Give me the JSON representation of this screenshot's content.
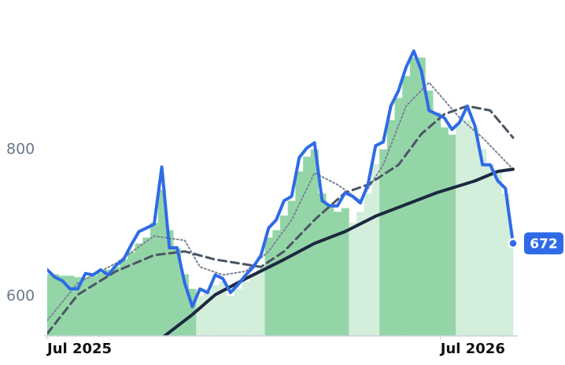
{
  "chart_data": {
    "type": "line",
    "ylim": [
      546,
      982
    ],
    "yticks": [
      600,
      800
    ],
    "xlim": [
      0,
      61
    ],
    "xticks": [
      {
        "value": 0,
        "label": "Jul 2025"
      },
      {
        "value": 51.5,
        "label": "Jul 2026"
      }
    ],
    "area": {
      "values": [
        630,
        630,
        628,
        628,
        626,
        625,
        628,
        632,
        636,
        640,
        650,
        660,
        672,
        680,
        700,
        745,
        690,
        665,
        630,
        610,
        600,
        605,
        615,
        620,
        600,
        610,
        620,
        630,
        640,
        680,
        690,
        710,
        730,
        770,
        790,
        800,
        740,
        725,
        715,
        720,
        700,
        715,
        740,
        780,
        800,
        840,
        870,
        900,
        925,
        925,
        880,
        850,
        830,
        820,
        835,
        840,
        830,
        800,
        780,
        770,
        740,
        690
      ],
      "bands": [
        {
          "from": 0,
          "to": 19,
          "color": "#94d5a8"
        },
        {
          "from": 20,
          "to": 28,
          "color": "#d3eedb"
        },
        {
          "from": 29,
          "to": 39,
          "color": "#94d5a8"
        },
        {
          "from": 40,
          "to": 43,
          "color": "#d3eedb"
        },
        {
          "from": 44,
          "to": 53,
          "color": "#94d5a8"
        },
        {
          "from": 54,
          "to": 61,
          "color": "#d3eedb"
        }
      ]
    },
    "series": [
      {
        "color": "#7a8594",
        "style": "dotted",
        "width": 2,
        "x": [
          0,
          4,
          9,
          14,
          18,
          20,
          23,
          26,
          29,
          32,
          35,
          38,
          41,
          44,
          47,
          50,
          54,
          57,
          61
        ],
        "values": [
          567,
          618,
          645,
          682,
          676,
          640,
          629,
          634,
          661,
          704,
          768,
          752,
          730,
          779,
          859,
          891,
          843,
          816,
          773
        ]
      },
      {
        "color": "#4a5563",
        "style": "dashed",
        "width": 3,
        "x": [
          0,
          4,
          9,
          14,
          18,
          22,
          25,
          28,
          31,
          35,
          39,
          42,
          46,
          49,
          52,
          55,
          58,
          61
        ],
        "values": [
          549,
          602,
          634,
          656,
          661,
          650,
          645,
          640,
          661,
          704,
          741,
          752,
          779,
          821,
          848,
          859,
          853,
          816
        ]
      },
      {
        "color": "#1c2940",
        "style": "solid",
        "width": 4,
        "x": [
          15,
          19,
          22,
          26,
          31,
          35,
          39,
          43,
          47,
          51,
          56,
          59,
          61
        ],
        "values": [
          543,
          575,
          602,
          624,
          650,
          672,
          688,
          709,
          725,
          741,
          757,
          770,
          773
        ]
      },
      {
        "color": "#2f6be6",
        "style": "solid",
        "width": 4,
        "last_label": true,
        "x": [
          0,
          1,
          2,
          3,
          4,
          5,
          6,
          7,
          8,
          9,
          10,
          11,
          12,
          13,
          14,
          15,
          16,
          17,
          18,
          19,
          20,
          21,
          22,
          23,
          24,
          25,
          26,
          27,
          28,
          29,
          30,
          31,
          32,
          33,
          34,
          35,
          36,
          37,
          38,
          39,
          40,
          41,
          42,
          43,
          44,
          45,
          46,
          47,
          48,
          49,
          50,
          51,
          52,
          53,
          54,
          55,
          56,
          57,
          58,
          59,
          60,
          61
        ],
        "values": [
          636,
          626,
          621,
          610,
          610,
          631,
          629,
          636,
          629,
          642,
          650,
          670,
          688,
          693,
          698,
          776,
          666,
          666,
          618,
          586,
          610,
          605,
          629,
          624,
          605,
          616,
          629,
          640,
          656,
          693,
          704,
          730,
          736,
          789,
          802,
          809,
          730,
          723,
          723,
          741,
          736,
          727,
          752,
          805,
          810,
          859,
          880,
          912,
          934,
          907,
          853,
          848,
          843,
          827,
          837,
          859,
          832,
          779,
          779,
          757,
          747,
          672
        ]
      }
    ]
  }
}
